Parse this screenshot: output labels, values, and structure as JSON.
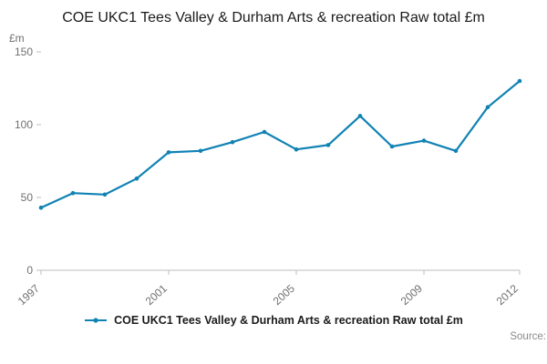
{
  "title": "COE UKC1 Tees Valley & Durham Arts & recreation Raw total £m",
  "y_unit_label": "£m",
  "legend_label": "COE UKC1 Tees Valley & Durham Arts & recreation Raw total £m",
  "source_label": "Source:",
  "colors": {
    "line": "#1082b4",
    "axis": "#bdbdbd",
    "tick_text": "#707071",
    "title_text": "#1a1a1a"
  },
  "chart_data": {
    "type": "line",
    "title": "COE UKC1 Tees Valley & Durham Arts & recreation Raw total £m",
    "ylabel": "£m",
    "xlabel": "",
    "x": [
      1997,
      1998,
      1999,
      2000,
      2001,
      2002,
      2003,
      2004,
      2005,
      2006,
      2007,
      2008,
      2009,
      2010,
      2011,
      2012
    ],
    "values": [
      43,
      53,
      52,
      63,
      81,
      82,
      88,
      95,
      83,
      86,
      106,
      85,
      89,
      82,
      112,
      130
    ],
    "ylim": [
      0,
      150
    ],
    "yticks": [
      0,
      50,
      100,
      150
    ],
    "xticks": [
      1997,
      2001,
      2005,
      2009,
      2012
    ],
    "grid": false,
    "legend_position": "bottom",
    "series_name": "COE UKC1 Tees Valley & Durham Arts & recreation Raw total £m"
  }
}
